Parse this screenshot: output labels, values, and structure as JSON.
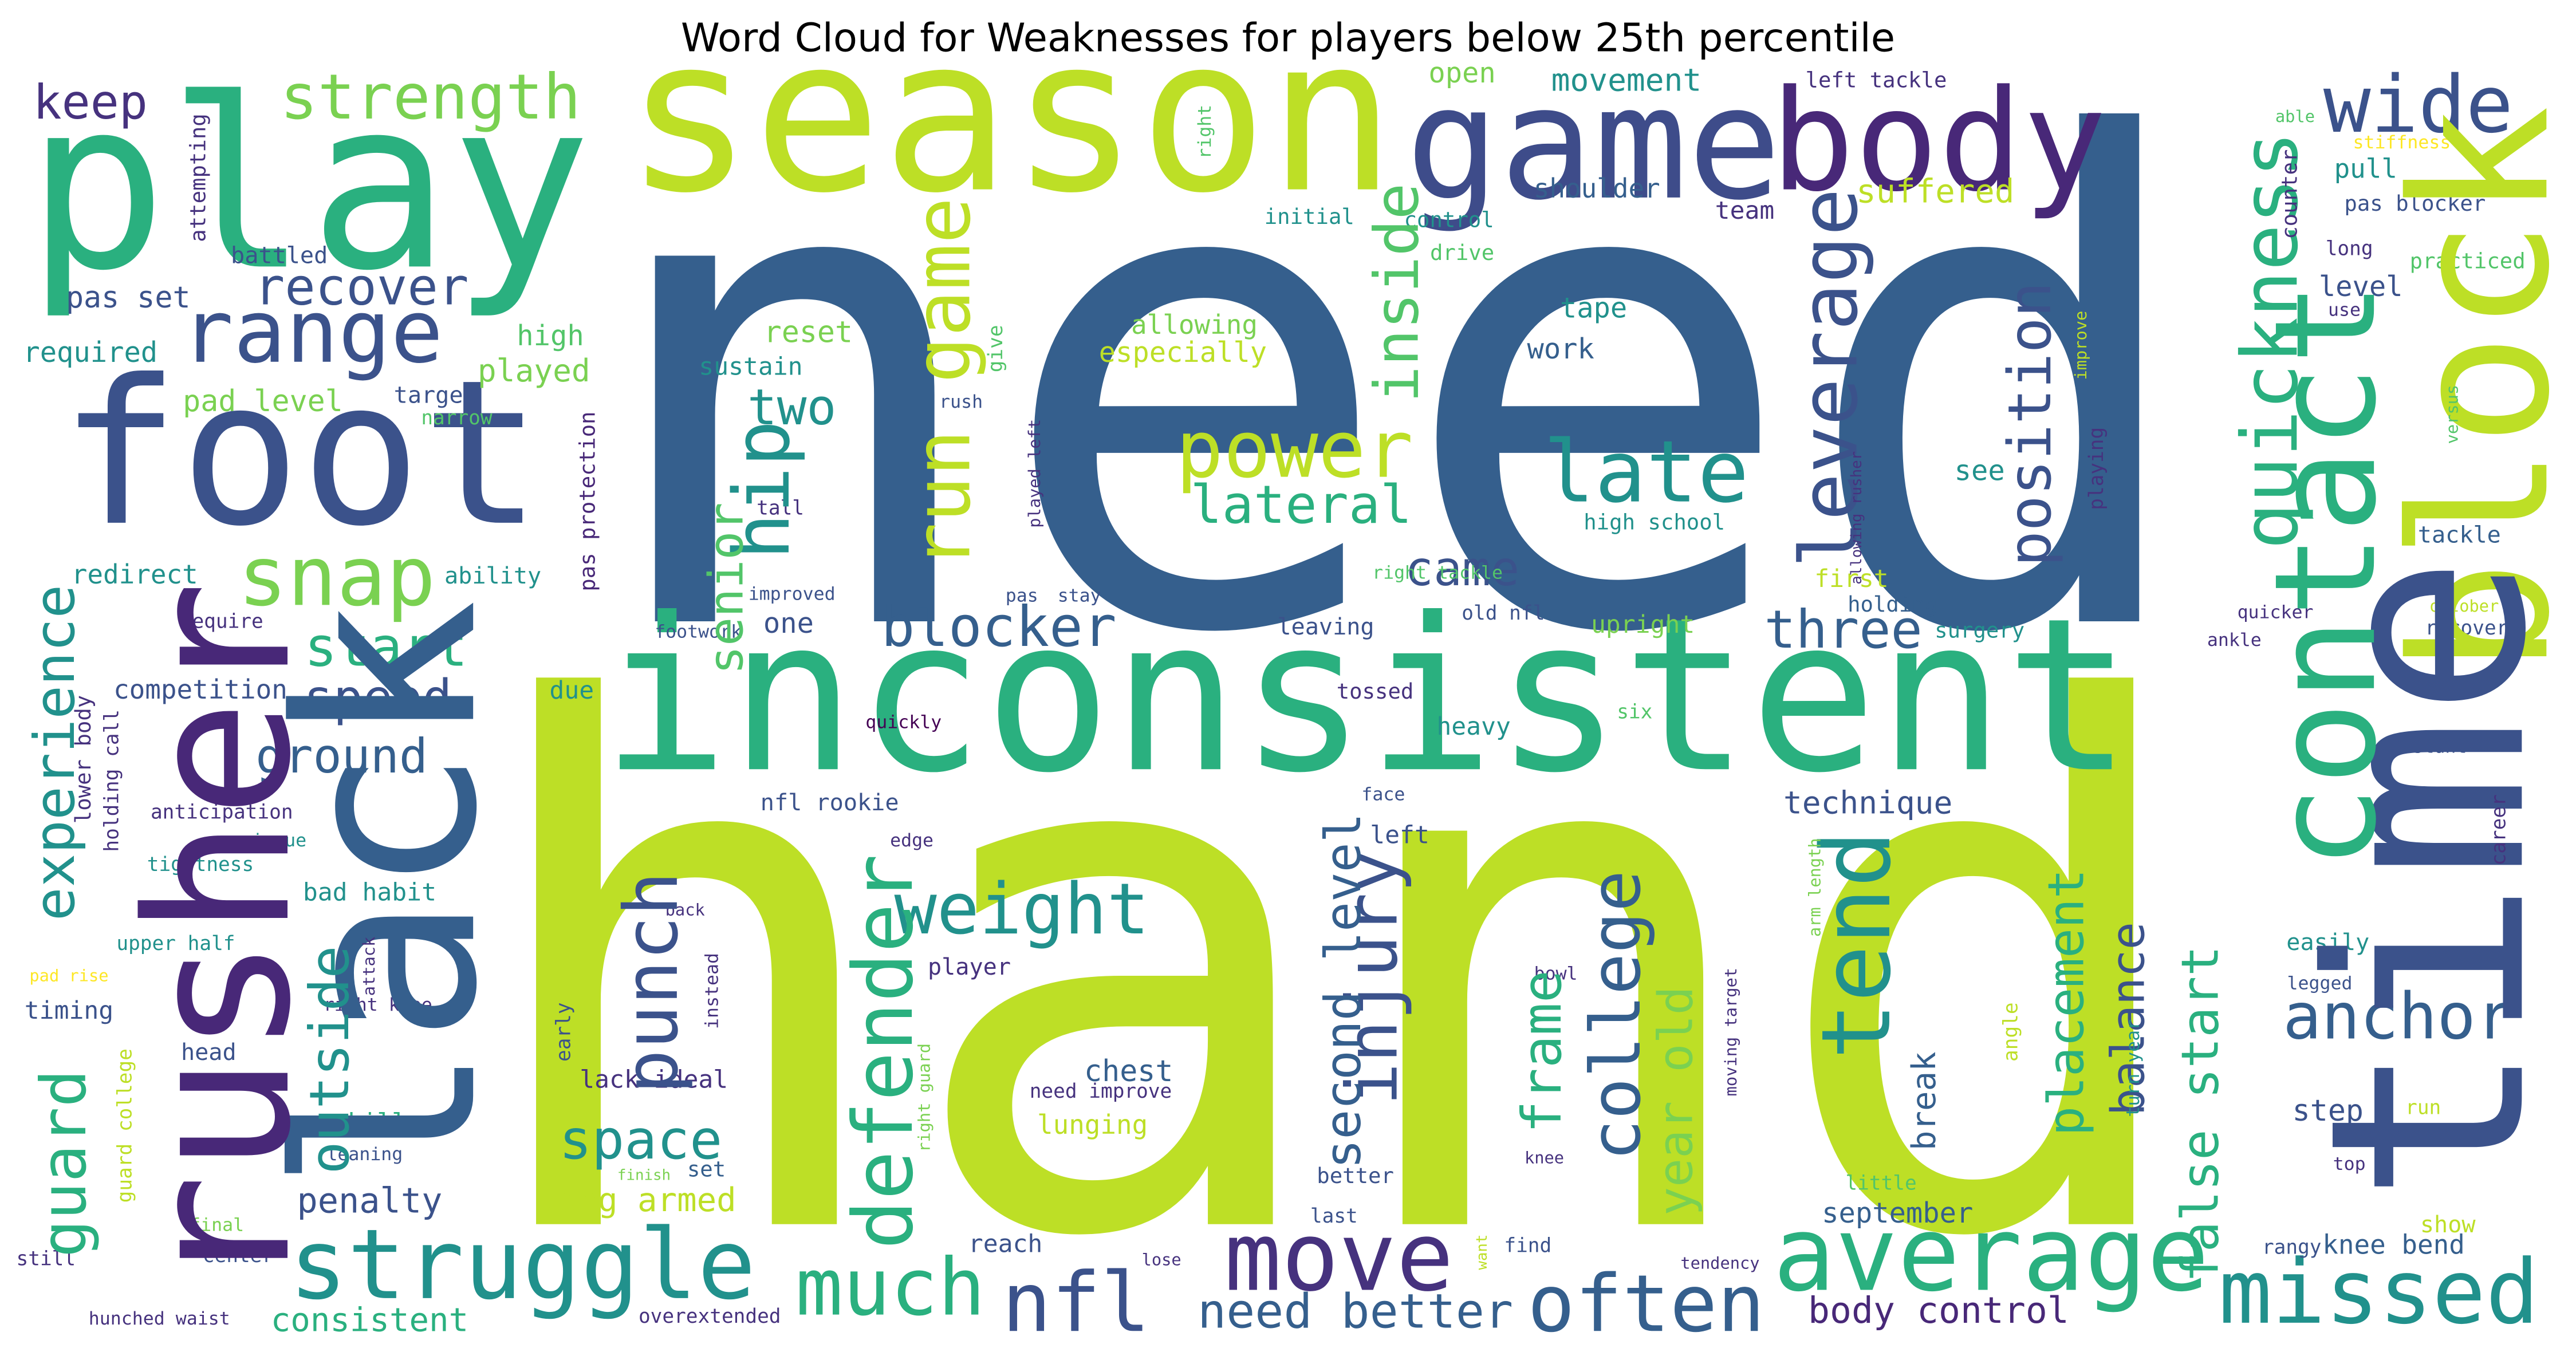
{
  "chart_data": {
    "type": "wordcloud",
    "title": "Word Cloud for Weaknesses for players below 25th percentile",
    "words": [
      {
        "text": "hand",
        "frequency": 438,
        "color": "#bddf26"
      },
      {
        "text": "need",
        "frequency": 407,
        "color": "#355f8d"
      },
      {
        "text": "inconsistent",
        "frequency": 129,
        "color": "#2ab07f"
      },
      {
        "text": "season",
        "frequency": 130,
        "color": "#bddf26"
      },
      {
        "text": "play",
        "frequency": 143,
        "color": "#2ab07f"
      },
      {
        "text": "foot",
        "frequency": 122,
        "color": "#3b528b"
      },
      {
        "text": "game",
        "frequency": 95,
        "color": "#3e4c8a"
      },
      {
        "text": "body",
        "frequency": 85,
        "color": "#482878"
      },
      {
        "text": "range",
        "frequency": 53,
        "color": "#3b528b"
      },
      {
        "text": "recover",
        "frequency": 31,
        "color": "#3b528b"
      },
      {
        "text": "strength",
        "frequency": 38,
        "color": "#7ad151"
      },
      {
        "text": "keep",
        "frequency": 29,
        "color": "#46327e"
      },
      {
        "text": "wide",
        "frequency": 48,
        "color": "#3b528b"
      },
      {
        "text": "snap",
        "frequency": 50,
        "color": "#7ad151"
      },
      {
        "text": "power",
        "frequency": 48,
        "color": "#bddf26"
      },
      {
        "text": "late",
        "frequency": 52,
        "color": "#21918c"
      },
      {
        "text": "lateral",
        "frequency": 32,
        "color": "#2ab07f"
      },
      {
        "text": "two",
        "frequency": 30,
        "color": "#21918c"
      },
      {
        "text": "weight",
        "frequency": 43,
        "color": "#21918c"
      },
      {
        "text": "blocker",
        "frequency": 34,
        "color": "#355f8d"
      },
      {
        "text": "start",
        "frequency": 33,
        "color": "#2ab07f"
      },
      {
        "text": "speed",
        "frequency": 30,
        "color": "#3b528b"
      },
      {
        "text": "ground",
        "frequency": 29,
        "color": "#355f8d"
      },
      {
        "text": "three",
        "frequency": 32,
        "color": "#355f8d"
      },
      {
        "text": "came",
        "frequency": 29,
        "color": "#3b528b"
      },
      {
        "text": "struggle",
        "frequency": 59,
        "color": "#21918c"
      },
      {
        "text": "much",
        "frequency": 48,
        "color": "#2ab07f"
      },
      {
        "text": "nfl",
        "frequency": 50,
        "color": "#3b528b"
      },
      {
        "text": "move",
        "frequency": 58,
        "color": "#46327e"
      },
      {
        "text": "often",
        "frequency": 48,
        "color": "#355f8d"
      },
      {
        "text": "average",
        "frequency": 63,
        "color": "#2ab07f"
      },
      {
        "text": "missed",
        "frequency": 54,
        "color": "#21918c"
      },
      {
        "text": "space",
        "frequency": 33,
        "color": "#21918c"
      },
      {
        "text": "anchor",
        "frequency": 39,
        "color": "#355f8d"
      },
      {
        "text": "need better",
        "frequency": 29,
        "color": "#355f8d"
      },
      {
        "text": "body control",
        "frequency": 22,
        "color": "#482878"
      },
      {
        "text": "consistent",
        "frequency": 20,
        "color": "#2ab07f"
      },
      {
        "text": "penalty",
        "frequency": 21,
        "color": "#3b528b"
      },
      {
        "text": "long armed",
        "frequency": 20,
        "color": "#bddf26"
      },
      {
        "text": "september",
        "frequency": 17,
        "color": "#355f8d"
      },
      {
        "text": "pad level",
        "frequency": 18,
        "color": "#7ad151"
      },
      {
        "text": "redirect",
        "frequency": 16,
        "color": "#21918c"
      },
      {
        "text": "competition",
        "frequency": 16,
        "color": "#3b528b"
      },
      {
        "text": "ability",
        "frequency": 14,
        "color": "#21918c"
      },
      {
        "text": "pas set",
        "frequency": 18,
        "color": "#3b528b"
      },
      {
        "text": "required",
        "frequency": 17,
        "color": "#21918c"
      },
      {
        "text": "high",
        "frequency": 17,
        "color": "#52c569"
      },
      {
        "text": "played",
        "frequency": 19,
        "color": "#7ad151"
      },
      {
        "text": "target",
        "frequency": 14,
        "color": "#3b528b"
      },
      {
        "text": "narrow",
        "frequency": 12,
        "color": "#52c569"
      },
      {
        "text": "reset",
        "frequency": 18,
        "color": "#7ad151"
      },
      {
        "text": "sustain",
        "frequency": 15,
        "color": "#21918c"
      },
      {
        "text": "open",
        "frequency": 17,
        "color": "#7ad151"
      },
      {
        "text": "movement",
        "frequency": 19,
        "color": "#21918c"
      },
      {
        "text": "left tackle",
        "frequency": 13,
        "color": "#46327e"
      },
      {
        "text": "shoulder",
        "frequency": 16,
        "color": "#355f8d"
      },
      {
        "text": "team",
        "frequency": 15,
        "color": "#46327e"
      },
      {
        "text": "suffered",
        "frequency": 20,
        "color": "#bddf26"
      },
      {
        "text": "control",
        "frequency": 13,
        "color": "#21918c"
      },
      {
        "text": "initial",
        "frequency": 13,
        "color": "#21918c"
      },
      {
        "text": "battled",
        "frequency": 14,
        "color": "#3b528b"
      },
      {
        "text": "drive",
        "frequency": 13,
        "color": "#52c569"
      },
      {
        "text": "allowing",
        "frequency": 16,
        "color": "#7ad151"
      },
      {
        "text": "especially",
        "frequency": 17,
        "color": "#bddf26"
      },
      {
        "text": "tape",
        "frequency": 17,
        "color": "#21918c"
      },
      {
        "text": "work",
        "frequency": 17,
        "color": "#355f8d"
      },
      {
        "text": "see",
        "frequency": 17,
        "color": "#21918c"
      },
      {
        "text": "tall",
        "frequency": 12,
        "color": "#46327e"
      },
      {
        "text": "high school",
        "frequency": 13,
        "color": "#21918c"
      },
      {
        "text": "first",
        "frequency": 15,
        "color": "#bddf26"
      },
      {
        "text": "holding",
        "frequency": 13,
        "color": "#355f8d"
      },
      {
        "text": "right tackle",
        "frequency": 11,
        "color": "#52c569"
      },
      {
        "text": "old nfl",
        "frequency": 12,
        "color": "#3b528b"
      },
      {
        "text": "improved",
        "frequency": 11,
        "color": "#3b528b"
      },
      {
        "text": "pas",
        "frequency": 11,
        "color": "#3b528b"
      },
      {
        "text": "stay",
        "frequency": 11,
        "color": "#3b528b"
      },
      {
        "text": "one",
        "frequency": 17,
        "color": "#3b528b"
      },
      {
        "text": "footwork",
        "frequency": 11,
        "color": "#3b528b"
      },
      {
        "text": "require",
        "frequency": 12,
        "color": "#46327e"
      },
      {
        "text": "leaving",
        "frequency": 14,
        "color": "#3b528b"
      },
      {
        "text": "upright",
        "frequency": 15,
        "color": "#7ad151"
      },
      {
        "text": "surgery",
        "frequency": 13,
        "color": "#21918c"
      },
      {
        "text": "due",
        "frequency": 15,
        "color": "#21918c"
      },
      {
        "text": "tossed",
        "frequency": 13,
        "color": "#46327e"
      },
      {
        "text": "heavy",
        "frequency": 15,
        "color": "#21918c"
      },
      {
        "text": "six",
        "frequency": 12,
        "color": "#52c569"
      },
      {
        "text": "quickly",
        "frequency": 11,
        "color": "#440154"
      },
      {
        "text": "anticipation",
        "frequency": 12,
        "color": "#46327e"
      },
      {
        "text": "issue",
        "frequency": 11,
        "color": "#21918c"
      },
      {
        "text": "tightness",
        "frequency": 12,
        "color": "#21918c"
      },
      {
        "text": "nfl rookie",
        "frequency": 14,
        "color": "#3b528b"
      },
      {
        "text": "technique",
        "frequency": 19,
        "color": "#3b528b"
      },
      {
        "text": "face",
        "frequency": 11,
        "color": "#3b528b"
      },
      {
        "text": "left",
        "frequency": 15,
        "color": "#3b528b"
      },
      {
        "text": "edge",
        "frequency": 11,
        "color": "#46327e"
      },
      {
        "text": "bad habit",
        "frequency": 15,
        "color": "#21918c"
      },
      {
        "text": "upper half",
        "frequency": 12,
        "color": "#21918c"
      },
      {
        "text": "back",
        "frequency": 10,
        "color": "#46327e"
      },
      {
        "text": "player",
        "frequency": 14,
        "color": "#46327e"
      },
      {
        "text": "right knee",
        "frequency": 11,
        "color": "#46327e"
      },
      {
        "text": "pad rise",
        "frequency": 10,
        "color": "#fde725"
      },
      {
        "text": "timing",
        "frequency": 15,
        "color": "#3b528b"
      },
      {
        "text": "easily",
        "frequency": 14,
        "color": "#21918c"
      },
      {
        "text": "legged",
        "frequency": 11,
        "color": "#3b528b"
      },
      {
        "text": "bowl",
        "frequency": 11,
        "color": "#46327e"
      },
      {
        "text": "head",
        "frequency": 14,
        "color": "#3b528b"
      },
      {
        "text": "chest",
        "frequency": 18,
        "color": "#355f8d"
      },
      {
        "text": "need improve",
        "frequency": 12,
        "color": "#46327e"
      },
      {
        "text": "lunging",
        "frequency": 16,
        "color": "#bddf26"
      },
      {
        "text": "step",
        "frequency": 18,
        "color": "#3b528b"
      },
      {
        "text": "run",
        "frequency": 12,
        "color": "#bddf26"
      },
      {
        "text": "skill",
        "frequency": 15,
        "color": "#2ab07f"
      },
      {
        "text": "leaning",
        "frequency": 11,
        "color": "#3b528b"
      },
      {
        "text": "set",
        "frequency": 13,
        "color": "#355f8d"
      },
      {
        "text": "finish",
        "frequency": 9,
        "color": "#7ad151"
      },
      {
        "text": "knee",
        "frequency": 10,
        "color": "#46327e"
      },
      {
        "text": "better",
        "frequency": 13,
        "color": "#3b528b"
      },
      {
        "text": "little",
        "frequency": 12,
        "color": "#52c569"
      },
      {
        "text": "top",
        "frequency": 11,
        "color": "#46327e"
      },
      {
        "text": "last",
        "frequency": 12,
        "color": "#3b528b"
      },
      {
        "text": "final",
        "frequency": 11,
        "color": "#7ad151"
      },
      {
        "text": "show",
        "frequency": 14,
        "color": "#bddf26"
      },
      {
        "text": "reach",
        "frequency": 15,
        "color": "#3b528b"
      },
      {
        "text": "find",
        "frequency": 12,
        "color": "#3b528b"
      },
      {
        "text": "center",
        "frequency": 12,
        "color": "#3b528b"
      },
      {
        "text": "rangy",
        "frequency": 12,
        "color": "#3b528b"
      },
      {
        "text": "knee bend",
        "frequency": 16,
        "color": "#355f8d"
      },
      {
        "text": "lose",
        "frequency": 10,
        "color": "#46327e"
      },
      {
        "text": "tendency",
        "frequency": 10,
        "color": "#46327e"
      },
      {
        "text": "still",
        "frequency": 12,
        "color": "#46327e"
      },
      {
        "text": "hunched waist",
        "frequency": 11,
        "color": "#46327e"
      },
      {
        "text": "overextended",
        "frequency": 12,
        "color": "#46327e"
      },
      {
        "text": "level",
        "frequency": 17,
        "color": "#3b528b"
      },
      {
        "text": "use",
        "frequency": 11,
        "color": "#46327e"
      },
      {
        "text": "pull",
        "frequency": 16,
        "color": "#21918c"
      },
      {
        "text": "pas blocker",
        "frequency": 13,
        "color": "#3b528b"
      },
      {
        "text": "long",
        "frequency": 12,
        "color": "#46327e"
      },
      {
        "text": "practiced",
        "frequency": 13,
        "color": "#52c569"
      },
      {
        "text": "able",
        "frequency": 10,
        "color": "#52c569"
      },
      {
        "text": "stiffness",
        "frequency": 11,
        "color": "#fde725"
      },
      {
        "text": "tackle",
        "frequency": 14,
        "color": "#355f8d"
      },
      {
        "text": "october",
        "frequency": 10,
        "color": "#bddf26"
      },
      {
        "text": "recovery",
        "frequency": 12,
        "color": "#3b528b"
      },
      {
        "text": "ankle",
        "frequency": 11,
        "color": "#46327e"
      },
      {
        "text": "quicker",
        "frequency": 11,
        "color": "#46327e"
      },
      {
        "text": "stunt",
        "frequency": 11,
        "color": "#3b528b"
      },
      {
        "text": "rush",
        "frequency": 11,
        "color": "#3b528b"
      },
      {
        "text": "lack ideal",
        "frequency": 15,
        "color": "#46327e"
      },
      {
        "text": "block",
        "frequency": 115,
        "color": "#bddf26"
      },
      {
        "text": "time",
        "frequency": 164,
        "color": "#3b528b"
      },
      {
        "text": "contact",
        "frequency": 85,
        "color": "#2ab07f"
      },
      {
        "text": "quickness",
        "frequency": 47,
        "color": "#2ab07f"
      },
      {
        "text": "lack",
        "frequency": 150,
        "color": "#355f8d"
      },
      {
        "text": "rusher",
        "frequency": 120,
        "color": "#482878"
      },
      {
        "text": "leverage",
        "frequency": 48,
        "color": "#3b528b"
      },
      {
        "text": "tend",
        "frequency": 58,
        "color": "#21918c"
      },
      {
        "text": "position",
        "frequency": 36,
        "color": "#3b528b"
      },
      {
        "text": "college",
        "frequency": 42,
        "color": "#355f8d"
      },
      {
        "text": "injury",
        "frequency": 43,
        "color": "#3b528b"
      },
      {
        "text": "defender",
        "frequency": 50,
        "color": "#2ab07f"
      },
      {
        "text": "run game",
        "frequency": 47,
        "color": "#bddf26"
      },
      {
        "text": "hip",
        "frequency": 47,
        "color": "#21918c"
      },
      {
        "text": "senior",
        "frequency": 29,
        "color": "#52c569"
      },
      {
        "text": "inside",
        "frequency": 37,
        "color": "#52c569"
      },
      {
        "text": "punch",
        "frequency": 45,
        "color": "#3b528b"
      },
      {
        "text": "second level",
        "frequency": 30,
        "color": "#355f8d"
      },
      {
        "text": "frame",
        "frequency": 33,
        "color": "#2ab07f"
      },
      {
        "text": "year old",
        "frequency": 29,
        "color": "#7ad151"
      },
      {
        "text": "placement",
        "frequency": 30,
        "color": "#2ab07f"
      },
      {
        "text": "balance",
        "frequency": 28,
        "color": "#3b528b"
      },
      {
        "text": "false start",
        "frequency": 31,
        "color": "#2ab07f"
      },
      {
        "text": "experience",
        "frequency": 34,
        "color": "#21918c"
      },
      {
        "text": "guard",
        "frequency": 38,
        "color": "#2ab07f"
      },
      {
        "text": "outside",
        "frequency": 33,
        "color": "#21918c"
      },
      {
        "text": "break",
        "frequency": 20,
        "color": "#355f8d"
      },
      {
        "text": "counter",
        "frequency": 13,
        "color": "#46327e"
      },
      {
        "text": "lower body",
        "frequency": 13,
        "color": "#46327e"
      },
      {
        "text": "holding call",
        "frequency": 12,
        "color": "#46327e"
      },
      {
        "text": "guard college",
        "frequency": 12,
        "color": "#bddf26"
      },
      {
        "text": "attempting",
        "frequency": 13,
        "color": "#46327e"
      },
      {
        "text": "pas protection",
        "frequency": 13,
        "color": "#482878"
      },
      {
        "text": "give",
        "frequency": 12,
        "color": "#52c569"
      },
      {
        "text": "played left",
        "frequency": 10,
        "color": "#46327e"
      },
      {
        "text": "right",
        "frequency": 11,
        "color": "#52c569"
      },
      {
        "text": "playing",
        "frequency": 12,
        "color": "#46327e"
      },
      {
        "text": "improve",
        "frequency": 10,
        "color": "#bddf26"
      },
      {
        "text": "allowing rusher",
        "frequency": 9,
        "color": "#46327e"
      },
      {
        "text": "versus",
        "frequency": 10,
        "color": "#52c569"
      },
      {
        "text": "career",
        "frequency": 12,
        "color": "#46327e"
      },
      {
        "text": "arm length",
        "frequency": 10,
        "color": "#7ad151"
      },
      {
        "text": "turn year",
        "frequency": 11,
        "color": "#21918c"
      },
      {
        "text": "angle",
        "frequency": 12,
        "color": "#bddf26"
      },
      {
        "text": "moving target",
        "frequency": 10,
        "color": "#46327e"
      },
      {
        "text": "early",
        "frequency": 12,
        "color": "#3b528b"
      },
      {
        "text": "instead",
        "frequency": 11,
        "color": "#46327e"
      },
      {
        "text": "right guard",
        "frequency": 10,
        "color": "#7ad151"
      },
      {
        "text": "attack",
        "frequency": 10,
        "color": "#46327e"
      },
      {
        "text": "want",
        "frequency": 9,
        "color": "#bddf26"
      }
    ]
  }
}
